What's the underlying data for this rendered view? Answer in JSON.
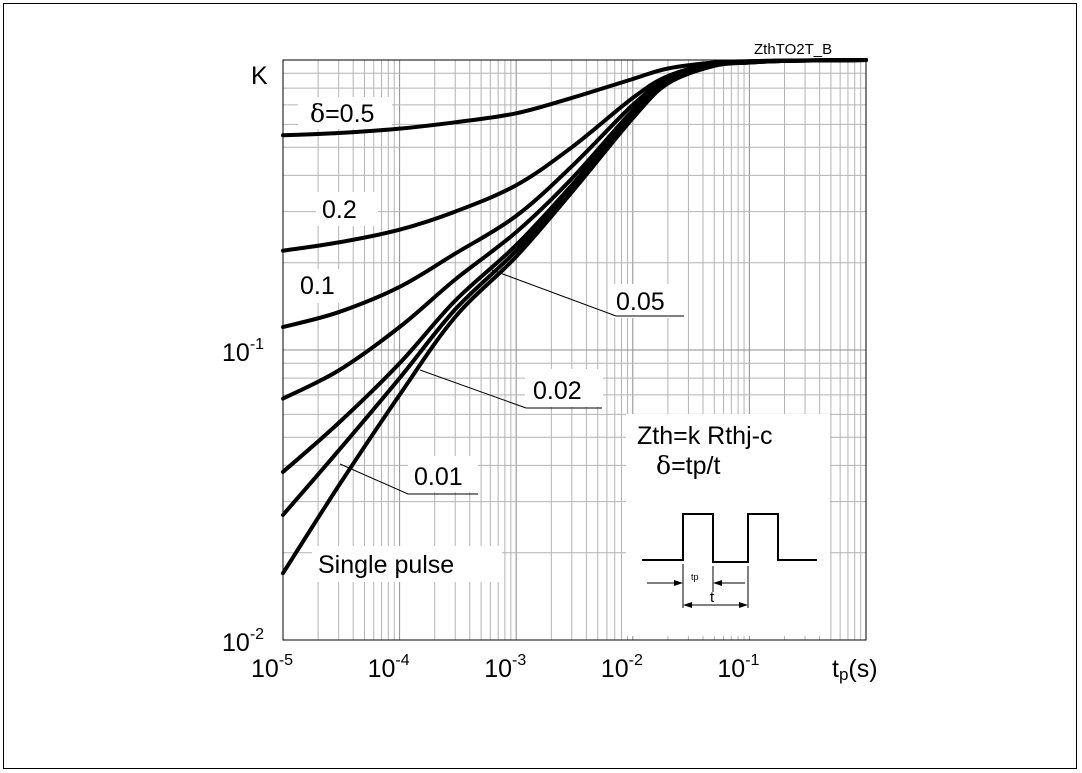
{
  "figure_id": "ZthTO2T_B",
  "chart_data": {
    "type": "line",
    "title": "",
    "xlabel_main": "t",
    "xlabel_sub": "p",
    "xlabel_unit": "(s)",
    "ylabel": "K",
    "x_scale": "log",
    "y_scale": "log",
    "xlim": [
      1e-05,
      1
    ],
    "ylim": [
      0.01,
      1
    ],
    "grid": true,
    "x_ticks": [
      {
        "base": "10",
        "exp": "-5",
        "value": 1e-05
      },
      {
        "base": "10",
        "exp": "-4",
        "value": 0.0001
      },
      {
        "base": "10",
        "exp": "-3",
        "value": 0.001
      },
      {
        "base": "10",
        "exp": "-2",
        "value": 0.01
      },
      {
        "base": "10",
        "exp": "-1",
        "value": 0.1
      }
    ],
    "y_ticks": [
      {
        "base": "10",
        "exp": "-1",
        "value": 0.1
      },
      {
        "base": "10",
        "exp": "-2",
        "value": 0.01
      }
    ],
    "series": [
      {
        "name": "δ=0.5",
        "x": [
          1e-05,
          3e-05,
          0.0001,
          0.0003,
          0.001,
          0.003,
          0.01,
          0.02,
          0.05,
          0.1,
          0.2,
          0.5,
          1
        ],
        "y": [
          0.55,
          0.56,
          0.58,
          0.61,
          0.655,
          0.74,
          0.86,
          0.935,
          0.98,
          0.99,
          0.995,
          0.998,
          1.0
        ]
      },
      {
        "name": "0.2",
        "x": [
          1e-05,
          3e-05,
          0.0001,
          0.0003,
          0.001,
          0.003,
          0.01,
          0.02,
          0.05,
          0.1,
          0.2,
          0.5,
          1
        ],
        "y": [
          0.22,
          0.235,
          0.26,
          0.3,
          0.37,
          0.5,
          0.74,
          0.88,
          0.975,
          0.99,
          0.995,
          0.998,
          1.0
        ]
      },
      {
        "name": "0.1",
        "x": [
          1e-05,
          3e-05,
          0.0001,
          0.0003,
          0.001,
          0.003,
          0.01,
          0.02,
          0.05,
          0.1,
          0.2,
          0.5,
          1
        ],
        "y": [
          0.12,
          0.135,
          0.165,
          0.215,
          0.29,
          0.43,
          0.7,
          0.86,
          0.97,
          0.985,
          0.995,
          0.998,
          1.0
        ]
      },
      {
        "name": "0.05",
        "x": [
          1e-05,
          3e-05,
          0.0001,
          0.0003,
          0.001,
          0.003,
          0.01,
          0.02,
          0.05,
          0.1,
          0.2,
          0.5,
          1
        ],
        "y": [
          0.068,
          0.085,
          0.12,
          0.175,
          0.255,
          0.39,
          0.67,
          0.85,
          0.965,
          0.985,
          0.993,
          0.998,
          1.0
        ]
      },
      {
        "name": "0.02",
        "x": [
          1e-05,
          3e-05,
          0.0001,
          0.0003,
          0.001,
          0.003,
          0.01,
          0.02,
          0.05,
          0.1,
          0.2,
          0.5,
          1
        ],
        "y": [
          0.038,
          0.056,
          0.09,
          0.148,
          0.23,
          0.37,
          0.65,
          0.84,
          0.96,
          0.98,
          0.993,
          0.998,
          1.0
        ]
      },
      {
        "name": "0.01",
        "x": [
          1e-05,
          3e-05,
          0.0001,
          0.0003,
          0.001,
          0.003,
          0.01,
          0.02,
          0.05,
          0.1,
          0.2,
          0.5,
          1
        ],
        "y": [
          0.027,
          0.045,
          0.08,
          0.138,
          0.22,
          0.36,
          0.64,
          0.835,
          0.96,
          0.98,
          0.993,
          0.998,
          1.0
        ]
      },
      {
        "name": "Single pulse",
        "x": [
          1e-05,
          3e-05,
          0.0001,
          0.0003,
          0.001,
          0.003,
          0.01,
          0.02,
          0.05,
          0.1,
          0.2,
          0.5,
          1
        ],
        "y": [
          0.017,
          0.034,
          0.07,
          0.13,
          0.21,
          0.35,
          0.63,
          0.83,
          0.955,
          0.98,
          0.993,
          0.998,
          1.0
        ]
      }
    ],
    "curve_labels": {
      "d05": {
        "prefix": "δ",
        "text": "=0.5"
      },
      "d02": "0.2",
      "d01": "0.1",
      "d005": "0.05",
      "d002": "0.02",
      "d001": "0.01",
      "single": "Single pulse"
    },
    "annotations": {
      "formula": "Zth=k Rthj-c",
      "delta_prefix": "δ",
      "delta_def": "=tp/t",
      "pulse_tp": "tp",
      "pulse_t": "t"
    }
  }
}
